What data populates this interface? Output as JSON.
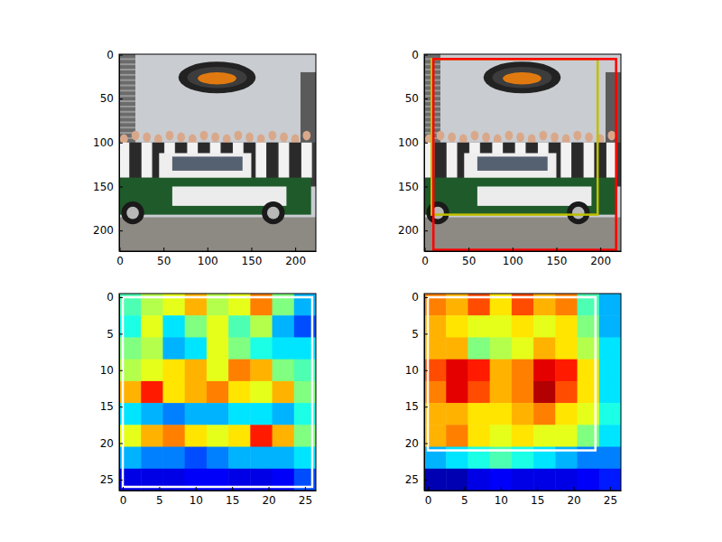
{
  "chart_data": [
    {
      "type": "image",
      "xlim": [
        -0.5,
        223.5
      ],
      "ylim": [
        223.5,
        -0.5
      ],
      "xticks": [
        0,
        50,
        100,
        150,
        200
      ],
      "yticks": [
        0,
        50,
        100,
        150,
        200
      ]
    },
    {
      "type": "image",
      "xlim": [
        -0.5,
        223.5
      ],
      "ylim": [
        223.5,
        -0.5
      ],
      "xticks": [
        0,
        50,
        100,
        150,
        200
      ],
      "yticks": [
        0,
        50,
        100,
        150,
        200
      ],
      "boxes": [
        {
          "color": "#bfbf00",
          "x0": 8,
          "x1": 197,
          "y0": 5,
          "y1": 182
        },
        {
          "color": "#ff0000",
          "x0": 10,
          "x1": 218,
          "y0": 5,
          "y1": 222
        }
      ]
    },
    {
      "type": "heatmap",
      "xlim": [
        -0.5,
        26.5
      ],
      "ylim": [
        26.5,
        -0.5
      ],
      "xticks": [
        0,
        5,
        10,
        15,
        20,
        25
      ],
      "yticks": [
        0,
        5,
        10,
        15,
        20,
        25
      ],
      "x_edges": [
        -0.5,
        2.5,
        5.5,
        8.5,
        11.5,
        14.5,
        17.5,
        20.5,
        23.5,
        26.5
      ],
      "y_edges": [
        -0.5,
        2.5,
        5.5,
        8.5,
        11.5,
        14.5,
        17.5,
        20.5,
        23.5,
        26.5
      ],
      "zlim": [
        0,
        1
      ],
      "cells": [
        [
          0.45,
          0.55,
          0.6,
          0.7,
          0.55,
          0.6,
          0.75,
          0.5,
          0.3
        ],
        [
          0.4,
          0.6,
          0.35,
          0.5,
          0.6,
          0.45,
          0.55,
          0.3,
          0.2
        ],
        [
          0.5,
          0.55,
          0.3,
          0.35,
          0.6,
          0.5,
          0.4,
          0.35,
          0.35
        ],
        [
          0.55,
          0.6,
          0.65,
          0.7,
          0.6,
          0.75,
          0.7,
          0.5,
          0.45
        ],
        [
          0.7,
          0.85,
          0.65,
          0.7,
          0.75,
          0.65,
          0.6,
          0.7,
          0.5
        ],
        [
          0.35,
          0.3,
          0.25,
          0.3,
          0.3,
          0.35,
          0.35,
          0.3,
          0.4
        ],
        [
          0.6,
          0.7,
          0.75,
          0.65,
          0.6,
          0.65,
          0.85,
          0.7,
          0.5
        ],
        [
          0.3,
          0.25,
          0.25,
          0.2,
          0.25,
          0.3,
          0.3,
          0.3,
          0.35
        ],
        [
          0.1,
          0.1,
          0.1,
          0.12,
          0.12,
          0.1,
          0.1,
          0.12,
          0.2
        ]
      ],
      "boxes": [
        {
          "color": "#ffffff",
          "x0": 0,
          "x1": 26,
          "y0": 0,
          "y1": 26
        }
      ]
    },
    {
      "type": "heatmap",
      "xlim": [
        -0.5,
        26.5
      ],
      "ylim": [
        26.5,
        -0.5
      ],
      "xticks": [
        0,
        5,
        10,
        15,
        20,
        25
      ],
      "yticks": [
        0,
        5,
        10,
        15,
        20,
        25
      ],
      "x_edges": [
        -0.5,
        2.5,
        5.5,
        8.5,
        11.5,
        14.5,
        17.5,
        20.5,
        23.5,
        26.5
      ],
      "y_edges": [
        -0.5,
        2.5,
        5.5,
        8.5,
        11.5,
        14.5,
        17.5,
        20.5,
        23.5,
        26.5
      ],
      "zlim": [
        0,
        1
      ],
      "cells": [
        [
          0.75,
          0.7,
          0.8,
          0.65,
          0.8,
          0.7,
          0.75,
          0.45,
          0.3
        ],
        [
          0.7,
          0.65,
          0.6,
          0.6,
          0.65,
          0.6,
          0.65,
          0.5,
          0.3
        ],
        [
          0.7,
          0.7,
          0.5,
          0.55,
          0.6,
          0.7,
          0.65,
          0.55,
          0.35
        ],
        [
          0.8,
          0.9,
          0.85,
          0.7,
          0.75,
          0.9,
          0.85,
          0.65,
          0.35
        ],
        [
          0.75,
          0.9,
          0.8,
          0.7,
          0.75,
          0.95,
          0.8,
          0.65,
          0.35
        ],
        [
          0.7,
          0.7,
          0.65,
          0.65,
          0.7,
          0.75,
          0.65,
          0.6,
          0.4
        ],
        [
          0.7,
          0.75,
          0.65,
          0.6,
          0.65,
          0.6,
          0.6,
          0.5,
          0.35
        ],
        [
          0.3,
          0.35,
          0.4,
          0.45,
          0.4,
          0.35,
          0.3,
          0.25,
          0.25
        ],
        [
          0.05,
          0.05,
          0.1,
          0.12,
          0.1,
          0.1,
          0.1,
          0.12,
          0.15
        ]
      ],
      "boxes": [
        {
          "color": "#ffffff",
          "x0": 0,
          "x1": 23,
          "y0": 0,
          "y1": 21
        }
      ]
    }
  ]
}
